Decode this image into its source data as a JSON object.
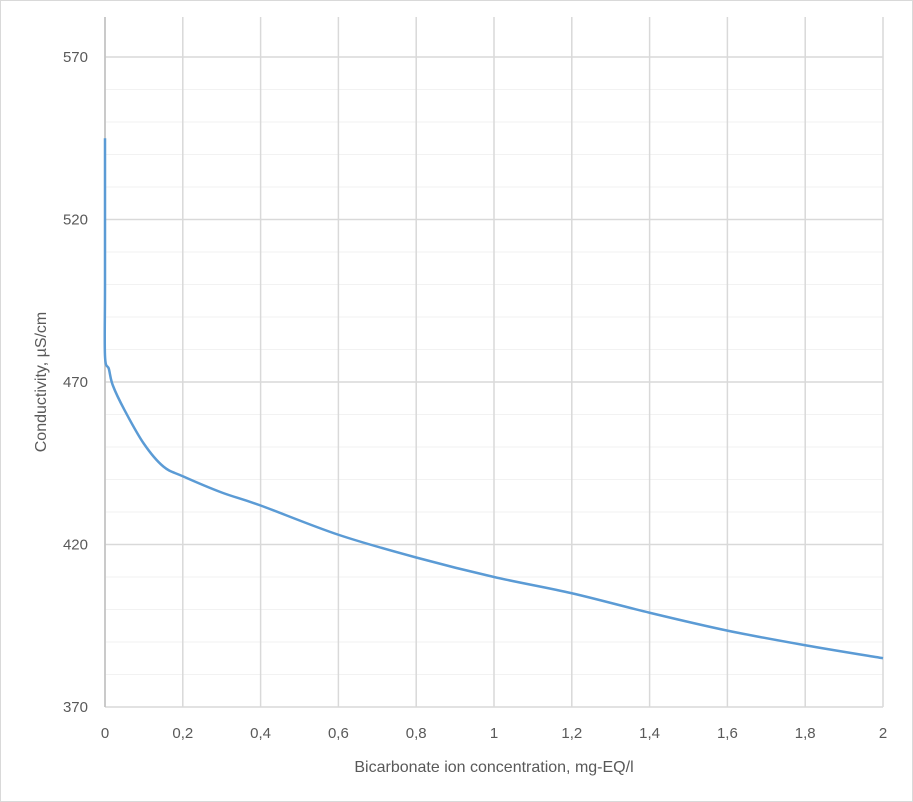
{
  "chart_data": {
    "type": "line",
    "title": "",
    "xlabel": "Bicarbonate ion concentration, mg-EQ/l",
    "ylabel": "Conductivity, µS/cm",
    "xlim": [
      0,
      2
    ],
    "ylim": [
      370,
      570
    ],
    "x_ticks": [
      "0",
      "0,2",
      "0,4",
      "0,6",
      "0,8",
      "1",
      "1,2",
      "1,4",
      "1,6",
      "1,8",
      "2"
    ],
    "x_tick_values": [
      0,
      0.2,
      0.4,
      0.6,
      0.8,
      1,
      1.2,
      1.4,
      1.6,
      1.8,
      2
    ],
    "y_ticks": [
      "370",
      "420",
      "470",
      "520",
      "570"
    ],
    "y_tick_values": [
      370,
      420,
      470,
      520,
      570
    ],
    "y_minor_step": 10,
    "grid": true,
    "legend": "none",
    "colors": {
      "line": "#5b9bd5",
      "major_grid": "#d9d9d9",
      "minor_grid": "#f2f2f2"
    },
    "series": [
      {
        "x": [
          0,
          0,
          0,
          0.01,
          0.02,
          0.05,
          0.1,
          0.15,
          0.2,
          0.3,
          0.4,
          0.6,
          0.8,
          1.0,
          1.2,
          1.4,
          1.6,
          1.8,
          2.0
        ],
        "y": [
          545,
          500,
          478,
          474,
          469,
          461.4,
          451,
          444,
          441,
          436,
          432,
          423,
          416,
          410,
          405,
          399,
          393.5,
          389,
          385
        ]
      }
    ]
  }
}
